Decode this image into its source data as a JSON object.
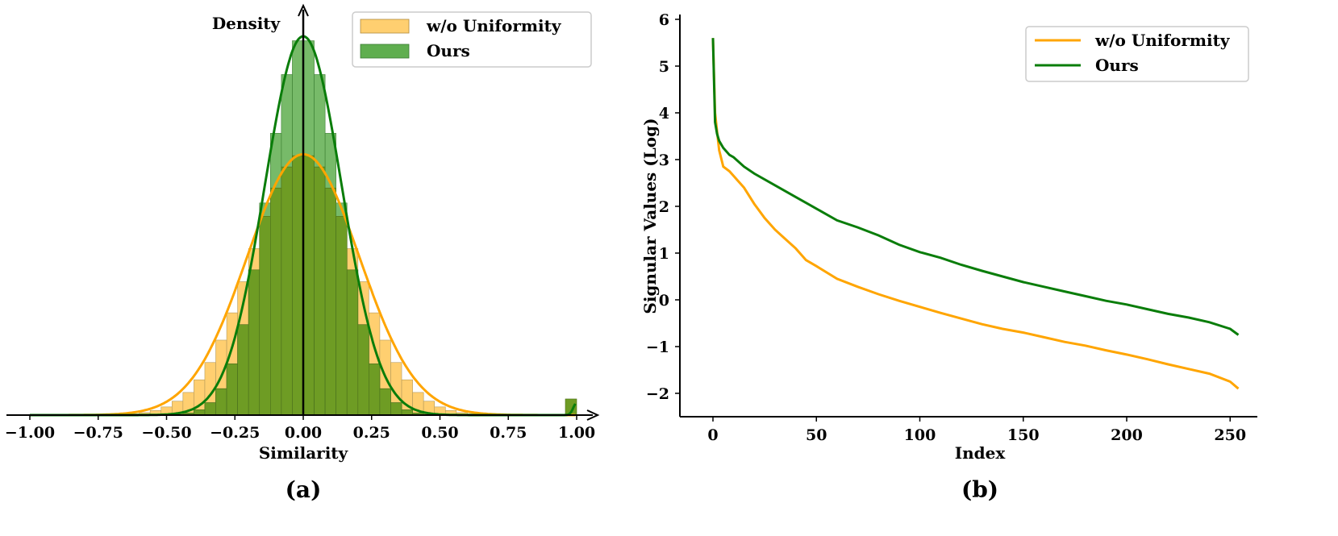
{
  "colors": {
    "orange": "#FFA500",
    "orange_bar": "#FFCF70",
    "green": "#0A7D0A",
    "green_bar": "#5FAE4F",
    "overlap_bar": "#6E9C24",
    "axis": "#000000"
  },
  "chart_data": [
    {
      "type": "histogram",
      "panel_label": "(a)",
      "title": "",
      "xlabel": "Similarity",
      "ylabel": "Density",
      "xlim": [
        -1.1,
        1.1
      ],
      "xticks": [
        "−1.00",
        "−0.75",
        "−0.50",
        "−0.25",
        "0.00",
        "0.25",
        "0.50",
        "0.75",
        "1.00"
      ],
      "xtick_values": [
        -1.0,
        -0.75,
        -0.5,
        -0.25,
        0.0,
        0.25,
        0.5,
        0.75,
        1.0
      ],
      "legend": [
        {
          "label": "w/o Uniformity",
          "kind": "bar",
          "color": "orange_bar"
        },
        {
          "label": "Ours",
          "kind": "bar",
          "color": "green_bar"
        }
      ],
      "legend_position": "top-right",
      "series": [
        {
          "name": "w/o Uniformity",
          "distribution": "normal",
          "mean": 0.0,
          "std": 0.19,
          "peak_density": 2.1,
          "kde": true
        },
        {
          "name": "Ours",
          "distribution": "normal",
          "mean": 0.0,
          "std": 0.13,
          "peak_density": 3.05,
          "kde": true,
          "outlier_at": 1.0,
          "outlier_density": 0.13
        }
      ],
      "bin_width": 0.04
    },
    {
      "type": "line",
      "panel_label": "(b)",
      "title": "",
      "xlabel": "Index",
      "ylabel": "Signular Values (Log)",
      "xlim": [
        -5,
        262
      ],
      "ylim": [
        -2.5,
        6.0
      ],
      "xticks": [
        "0",
        "50",
        "100",
        "150",
        "200",
        "250"
      ],
      "xtick_values": [
        0,
        50,
        100,
        150,
        200,
        250
      ],
      "yticks": [
        "−2",
        "−1",
        "0",
        "1",
        "2",
        "3",
        "4",
        "5",
        "6"
      ],
      "ytick_values": [
        -2,
        -1,
        0,
        1,
        2,
        3,
        4,
        5,
        6
      ],
      "legend": [
        {
          "label": "w/o Uniformity",
          "color": "orange"
        },
        {
          "label": "Ours",
          "color": "green"
        }
      ],
      "legend_position": "top-right",
      "series": [
        {
          "name": "w/o Uniformity",
          "x": [
            0,
            1,
            2,
            3,
            5,
            8,
            10,
            12,
            15,
            20,
            25,
            30,
            35,
            40,
            45,
            50,
            60,
            70,
            80,
            90,
            100,
            110,
            120,
            130,
            140,
            150,
            160,
            170,
            180,
            190,
            200,
            210,
            220,
            230,
            240,
            250,
            254
          ],
          "y": [
            5.6,
            4.0,
            3.6,
            3.2,
            2.85,
            2.75,
            2.65,
            2.55,
            2.4,
            2.05,
            1.75,
            1.5,
            1.3,
            1.1,
            0.85,
            0.72,
            0.45,
            0.28,
            0.12,
            -0.02,
            -0.15,
            -0.28,
            -0.4,
            -0.52,
            -0.62,
            -0.7,
            -0.8,
            -0.9,
            -0.98,
            -1.08,
            -1.17,
            -1.27,
            -1.38,
            -1.48,
            -1.58,
            -1.75,
            -1.9
          ]
        },
        {
          "name": "Ours",
          "x": [
            0,
            1,
            2,
            3,
            5,
            8,
            10,
            15,
            20,
            30,
            40,
            50,
            60,
            70,
            80,
            90,
            100,
            110,
            120,
            130,
            140,
            150,
            160,
            170,
            180,
            190,
            200,
            210,
            220,
            230,
            240,
            250,
            254
          ],
          "y": [
            5.6,
            3.8,
            3.55,
            3.4,
            3.25,
            3.1,
            3.05,
            2.85,
            2.7,
            2.45,
            2.2,
            1.95,
            1.7,
            1.55,
            1.38,
            1.18,
            1.02,
            0.9,
            0.75,
            0.62,
            0.5,
            0.38,
            0.28,
            0.18,
            0.08,
            -0.02,
            -0.1,
            -0.2,
            -0.3,
            -0.38,
            -0.48,
            -0.62,
            -0.75
          ]
        }
      ]
    }
  ]
}
